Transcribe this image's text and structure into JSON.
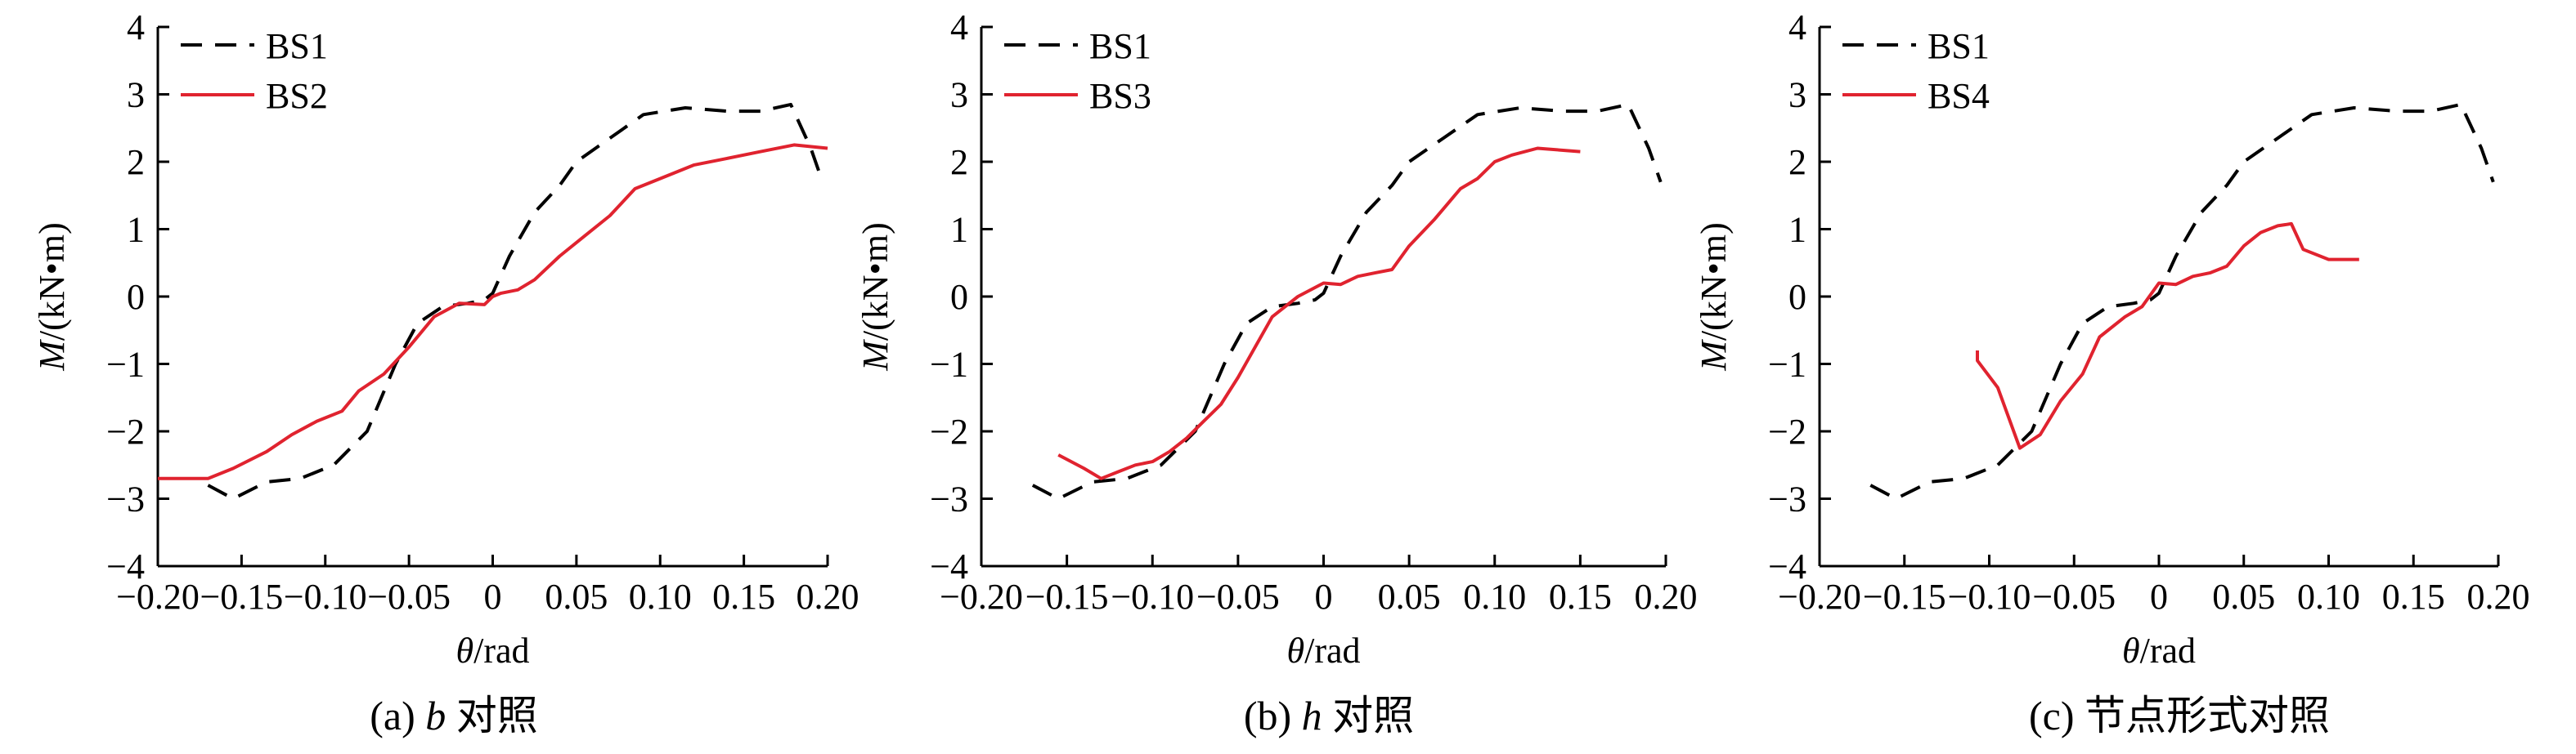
{
  "colors": {
    "bs1": "#000000",
    "compare": "#e0232f",
    "axis": "#000000"
  },
  "chart_data": [
    {
      "type": "line",
      "panel_label": "(a)",
      "caption_var": "b",
      "caption_text": "对照",
      "xlabel_var": "θ",
      "xlabel_unit": "/rad",
      "ylabel_var": "M",
      "ylabel_unit": "/(kN•m)",
      "xlim": [
        -0.2,
        0.2
      ],
      "ylim": [
        -4,
        4
      ],
      "xticks": [
        "−0.20",
        "−0.15",
        "−0.10",
        "−0.05",
        "0",
        "0.05",
        "0.10",
        "0.15",
        "0.20"
      ],
      "yticks": [
        "−4",
        "−3",
        "−2",
        "−1",
        "0",
        "1",
        "2",
        "3",
        "4"
      ],
      "legend_position": "top-left",
      "grid": false,
      "series": [
        {
          "name": "BS1",
          "style": "dashed",
          "color": "#000000",
          "x": [
            -0.17,
            -0.155,
            -0.135,
            -0.115,
            -0.095,
            -0.075,
            -0.058,
            -0.045,
            -0.03,
            -0.015,
            -0.005,
            0.0,
            0.01,
            0.025,
            0.04,
            0.05,
            0.07,
            0.09,
            0.115,
            0.14,
            0.16,
            0.178,
            0.19,
            0.197
          ],
          "y": [
            -2.8,
            -3.0,
            -2.75,
            -2.7,
            -2.5,
            -2.0,
            -1.0,
            -0.4,
            -0.15,
            -0.1,
            -0.05,
            0.05,
            0.6,
            1.25,
            1.65,
            2.0,
            2.35,
            2.7,
            2.8,
            2.75,
            2.75,
            2.85,
            2.2,
            1.7
          ]
        },
        {
          "name": "BS2",
          "style": "solid",
          "color": "#e0232f",
          "x": [
            -0.2,
            -0.17,
            -0.155,
            -0.135,
            -0.12,
            -0.105,
            -0.09,
            -0.08,
            -0.065,
            -0.05,
            -0.035,
            -0.02,
            -0.005,
            0.0,
            0.005,
            0.015,
            0.025,
            0.04,
            0.055,
            0.07,
            0.085,
            0.1,
            0.12,
            0.14,
            0.16,
            0.18,
            0.2
          ],
          "y": [
            -2.7,
            -2.7,
            -2.55,
            -2.3,
            -2.05,
            -1.85,
            -1.7,
            -1.4,
            -1.15,
            -0.75,
            -0.3,
            -0.1,
            -0.12,
            0.0,
            0.05,
            0.1,
            0.25,
            0.6,
            0.9,
            1.2,
            1.6,
            1.75,
            1.95,
            2.05,
            2.15,
            2.25,
            2.2
          ]
        }
      ]
    },
    {
      "type": "line",
      "panel_label": "(b)",
      "caption_var": "h",
      "caption_text": "对照",
      "xlabel_var": "θ",
      "xlabel_unit": "/rad",
      "ylabel_var": "M",
      "ylabel_unit": "/(kN•m)",
      "xlim": [
        -0.2,
        0.2
      ],
      "ylim": [
        -4,
        4
      ],
      "xticks": [
        "−0.20",
        "−0.15",
        "−0.10",
        "−0.05",
        "0",
        "0.05",
        "0.10",
        "0.15",
        "0.20"
      ],
      "yticks": [
        "−4",
        "−3",
        "−2",
        "−1",
        "0",
        "1",
        "2",
        "3",
        "4"
      ],
      "legend_position": "top-left",
      "grid": false,
      "series": [
        {
          "name": "BS1",
          "style": "dashed",
          "color": "#000000",
          "x": [
            -0.17,
            -0.155,
            -0.135,
            -0.115,
            -0.095,
            -0.075,
            -0.058,
            -0.045,
            -0.03,
            -0.015,
            -0.005,
            0.0,
            0.01,
            0.025,
            0.04,
            0.05,
            0.07,
            0.09,
            0.115,
            0.14,
            0.16,
            0.178,
            0.19,
            0.197
          ],
          "y": [
            -2.8,
            -3.0,
            -2.75,
            -2.7,
            -2.5,
            -2.0,
            -1.0,
            -0.4,
            -0.15,
            -0.1,
            -0.05,
            0.05,
            0.6,
            1.25,
            1.65,
            2.0,
            2.35,
            2.7,
            2.8,
            2.75,
            2.75,
            2.85,
            2.2,
            1.7
          ]
        },
        {
          "name": "BS3",
          "style": "solid",
          "color": "#e0232f",
          "x": [
            -0.155,
            -0.14,
            -0.13,
            -0.12,
            -0.11,
            -0.1,
            -0.09,
            -0.08,
            -0.07,
            -0.06,
            -0.05,
            -0.04,
            -0.03,
            -0.015,
            0.0,
            0.01,
            0.02,
            0.03,
            0.04,
            0.05,
            0.065,
            0.08,
            0.09,
            0.1,
            0.11,
            0.125,
            0.15
          ],
          "y": [
            -2.35,
            -2.55,
            -2.7,
            -2.6,
            -2.5,
            -2.45,
            -2.3,
            -2.1,
            -1.85,
            -1.6,
            -1.2,
            -0.75,
            -0.3,
            0.0,
            0.2,
            0.18,
            0.3,
            0.35,
            0.4,
            0.75,
            1.15,
            1.6,
            1.75,
            2.0,
            2.1,
            2.2,
            2.15
          ]
        }
      ]
    },
    {
      "type": "line",
      "panel_label": "(c)",
      "caption_var": "",
      "caption_text": "节点形式对照",
      "xlabel_var": "θ",
      "xlabel_unit": "/rad",
      "ylabel_var": "M",
      "ylabel_unit": "/(kN•m)",
      "xlim": [
        -0.2,
        0.2
      ],
      "ylim": [
        -4,
        4
      ],
      "xticks": [
        "−0.20",
        "−0.15",
        "−0.10",
        "−0.05",
        "0",
        "0.05",
        "0.10",
        "0.15",
        "0.20"
      ],
      "yticks": [
        "−4",
        "−3",
        "−2",
        "−1",
        "0",
        "1",
        "2",
        "3",
        "4"
      ],
      "legend_position": "top-left",
      "grid": false,
      "series": [
        {
          "name": "BS1",
          "style": "dashed",
          "color": "#000000",
          "x": [
            -0.17,
            -0.155,
            -0.135,
            -0.115,
            -0.095,
            -0.075,
            -0.058,
            -0.045,
            -0.03,
            -0.015,
            -0.005,
            0.0,
            0.01,
            0.025,
            0.04,
            0.05,
            0.07,
            0.09,
            0.115,
            0.14,
            0.16,
            0.178,
            0.19,
            0.197
          ],
          "y": [
            -2.8,
            -3.0,
            -2.75,
            -2.7,
            -2.5,
            -2.0,
            -1.0,
            -0.4,
            -0.15,
            -0.1,
            -0.05,
            0.05,
            0.6,
            1.25,
            1.65,
            2.0,
            2.35,
            2.7,
            2.8,
            2.75,
            2.75,
            2.85,
            2.2,
            1.7
          ]
        },
        {
          "name": "BS4",
          "style": "solid",
          "color": "#e0232f",
          "x": [
            -0.107,
            -0.107,
            -0.095,
            -0.082,
            -0.07,
            -0.058,
            -0.045,
            -0.035,
            -0.02,
            -0.01,
            0.0,
            0.01,
            0.02,
            0.03,
            0.04,
            0.05,
            0.06,
            0.07,
            0.078,
            0.085,
            0.1,
            0.118
          ],
          "y": [
            -0.8,
            -0.95,
            -1.35,
            -2.25,
            -2.05,
            -1.55,
            -1.15,
            -0.6,
            -0.3,
            -0.15,
            0.2,
            0.18,
            0.3,
            0.35,
            0.45,
            0.75,
            0.95,
            1.05,
            1.08,
            0.7,
            0.55,
            0.55
          ]
        }
      ]
    }
  ]
}
